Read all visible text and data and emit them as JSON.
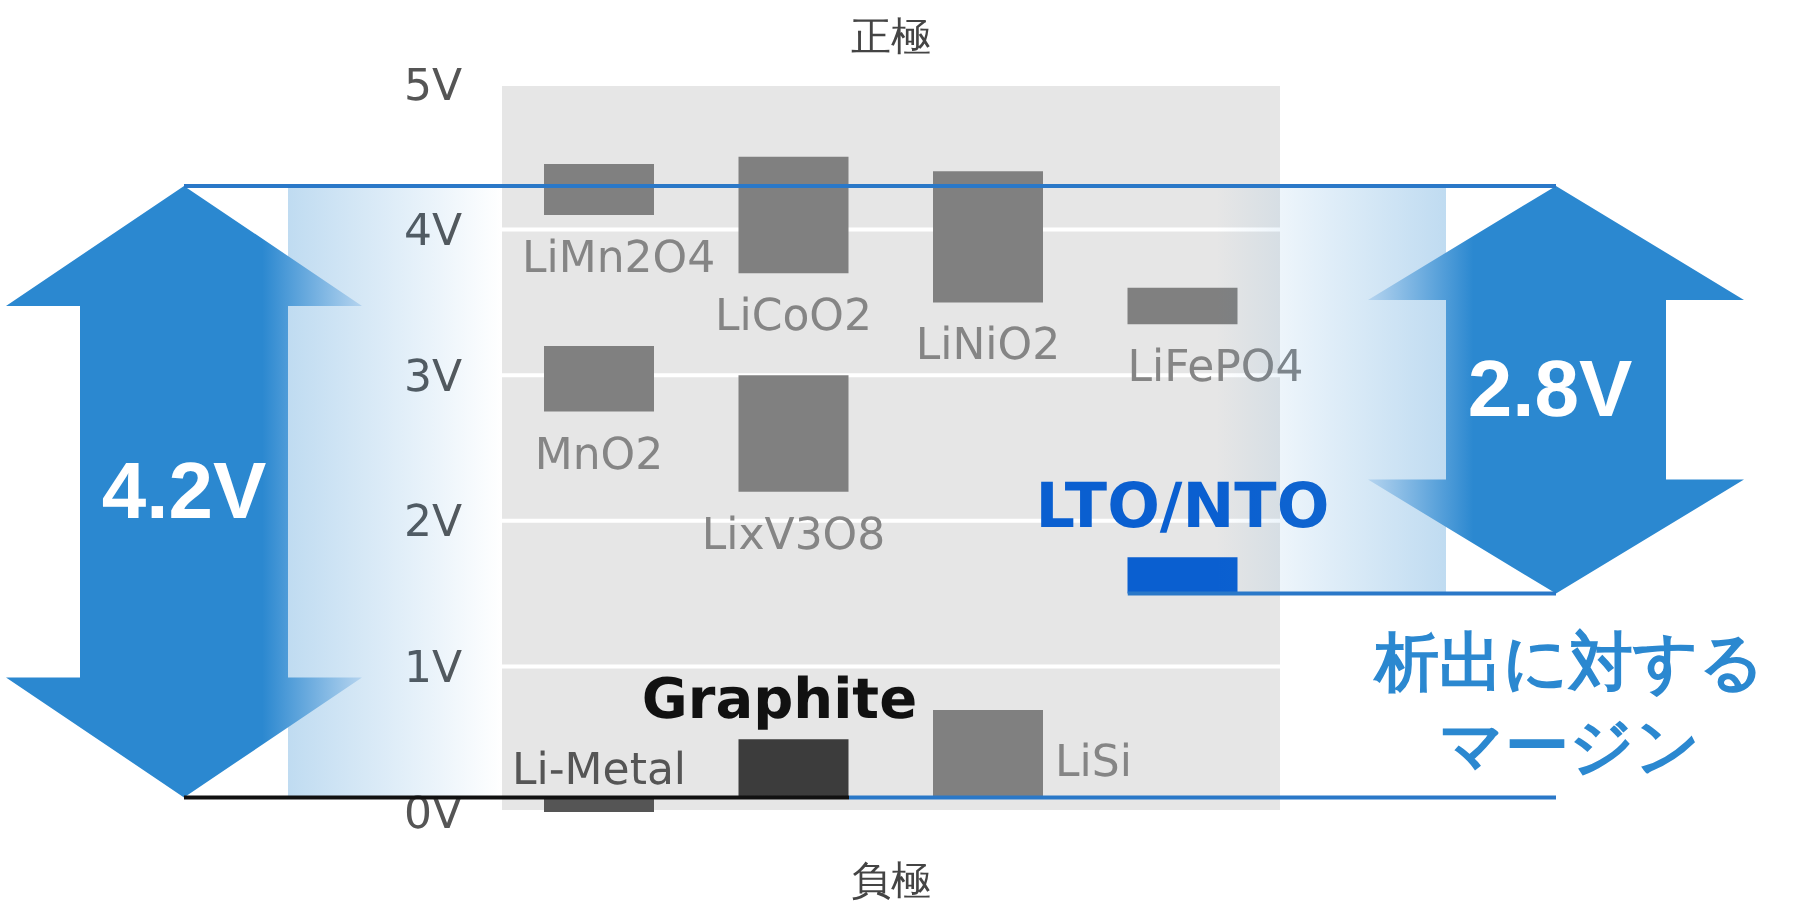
{
  "chart_data": {
    "type": "bar",
    "title": "正極",
    "xlabel": "負極",
    "categories": [
      null,
      null,
      null,
      null
    ],
    "series": [
      {
        "name": "LiMn2O4",
        "color": "#808080",
        "values": [
          0.35,
          null,
          null,
          null
        ],
        "base": [
          4.1,
          null,
          null,
          null
        ]
      },
      {
        "name": "LiCoO2",
        "color": "#808080",
        "values": [
          null,
          0.8,
          null,
          null
        ],
        "base": [
          null,
          3.7,
          null,
          null
        ]
      },
      {
        "name": "LiNiO2",
        "color": "#808080",
        "values": [
          null,
          null,
          0.9,
          null
        ],
        "base": [
          null,
          null,
          3.5,
          null
        ]
      },
      {
        "name": "LiFePO4",
        "color": "#808080",
        "values": [
          null,
          null,
          null,
          0.25
        ],
        "base": [
          null,
          null,
          null,
          3.35
        ]
      },
      {
        "name": "MnO2",
        "color": "#808080",
        "values": [
          0.45,
          null,
          null,
          null
        ],
        "base": [
          2.75,
          null,
          null,
          null
        ]
      },
      {
        "name": "LixV3O8",
        "color": "#808080",
        "values": [
          null,
          0.8,
          null,
          null
        ],
        "base": [
          null,
          2.2,
          null,
          null
        ]
      },
      {
        "name": "LTO/NTO",
        "color": "#0a5fd0",
        "values": [
          null,
          null,
          null,
          0.25
        ],
        "base": [
          null,
          null,
          null,
          1.5
        ]
      },
      {
        "name": "Li-Metal",
        "color": "#555555",
        "values": [
          0.1,
          null,
          null,
          null
        ],
        "base": [
          0,
          null,
          null,
          null
        ]
      },
      {
        "name": "Graphite",
        "color": "#3c3c3c",
        "values": [
          null,
          0.4,
          null,
          null
        ],
        "base": [
          null,
          0.1,
          null,
          null
        ]
      },
      {
        "name": "LiSi",
        "color": "#808080",
        "values": [
          null,
          null,
          0.6,
          null
        ],
        "base": [
          null,
          null,
          0.1,
          null
        ]
      }
    ],
    "ylim": [
      0,
      5
    ],
    "yticks": [
      {
        "value": 0,
        "label": "0V"
      },
      {
        "value": 1,
        "label": "1V"
      },
      {
        "value": 2,
        "label": "2V"
      },
      {
        "value": 3,
        "label": "3V"
      },
      {
        "value": 4,
        "label": "4V"
      },
      {
        "value": 5,
        "label": "5V"
      }
    ],
    "grid": "y",
    "ref_lines": [
      {
        "axis": "y",
        "value": 4.3,
        "color": "#2a78c8"
      },
      {
        "axis": "y",
        "value": 0.1,
        "color": "#2a78c8"
      },
      {
        "axis": "y",
        "value": 1.5,
        "color": "#2a78c8"
      }
    ],
    "annotations": [
      "4.2V",
      "2.8V",
      "析出に対するマージン"
    ]
  }
}
